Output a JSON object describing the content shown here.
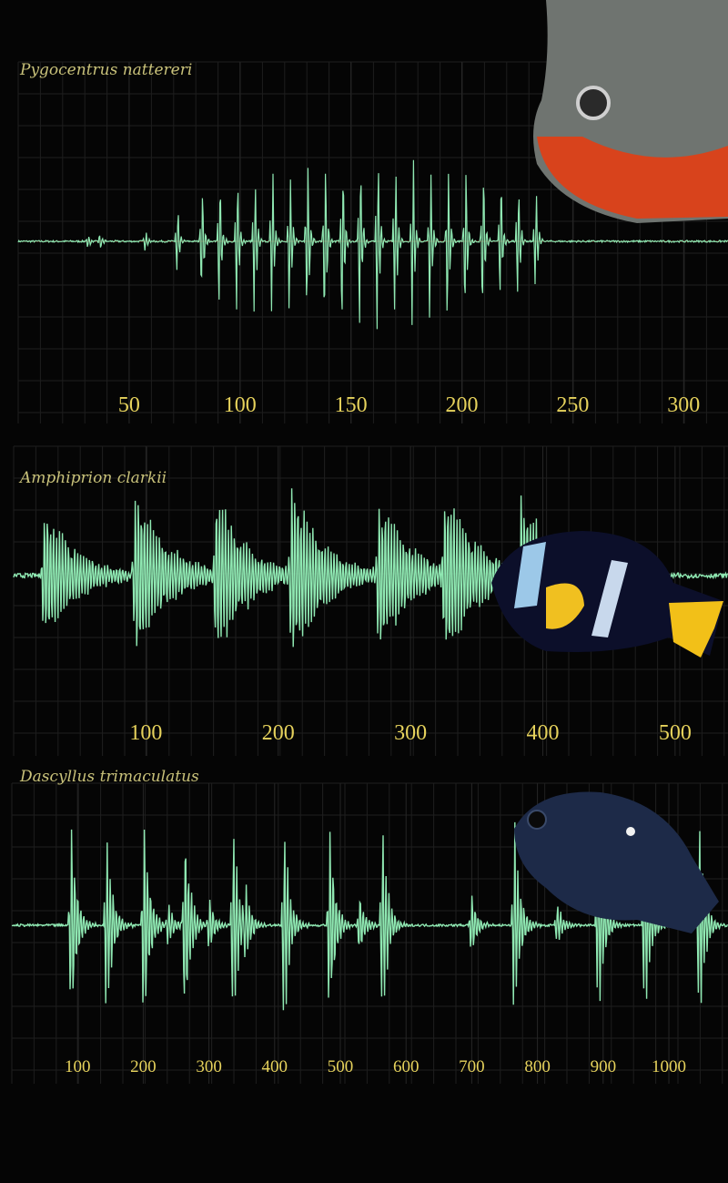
{
  "chart_data": [
    {
      "type": "oscillogram",
      "title": "Pygocentrus nattereri",
      "xlim": [
        0,
        320
      ],
      "xticks": [
        50,
        100,
        150,
        200,
        250,
        300
      ]
    },
    {
      "type": "oscillogram",
      "title": "Amphiprion clarkii",
      "xlim": [
        0,
        540
      ],
      "xticks": [
        100,
        200,
        300,
        400,
        500
      ]
    },
    {
      "type": "oscillogram",
      "title": "Dascyllus trimaculatus",
      "xlim": [
        0,
        1090
      ],
      "xticks": [
        100,
        200,
        300,
        400,
        500,
        600,
        700,
        800,
        900,
        1000
      ]
    }
  ]
}
